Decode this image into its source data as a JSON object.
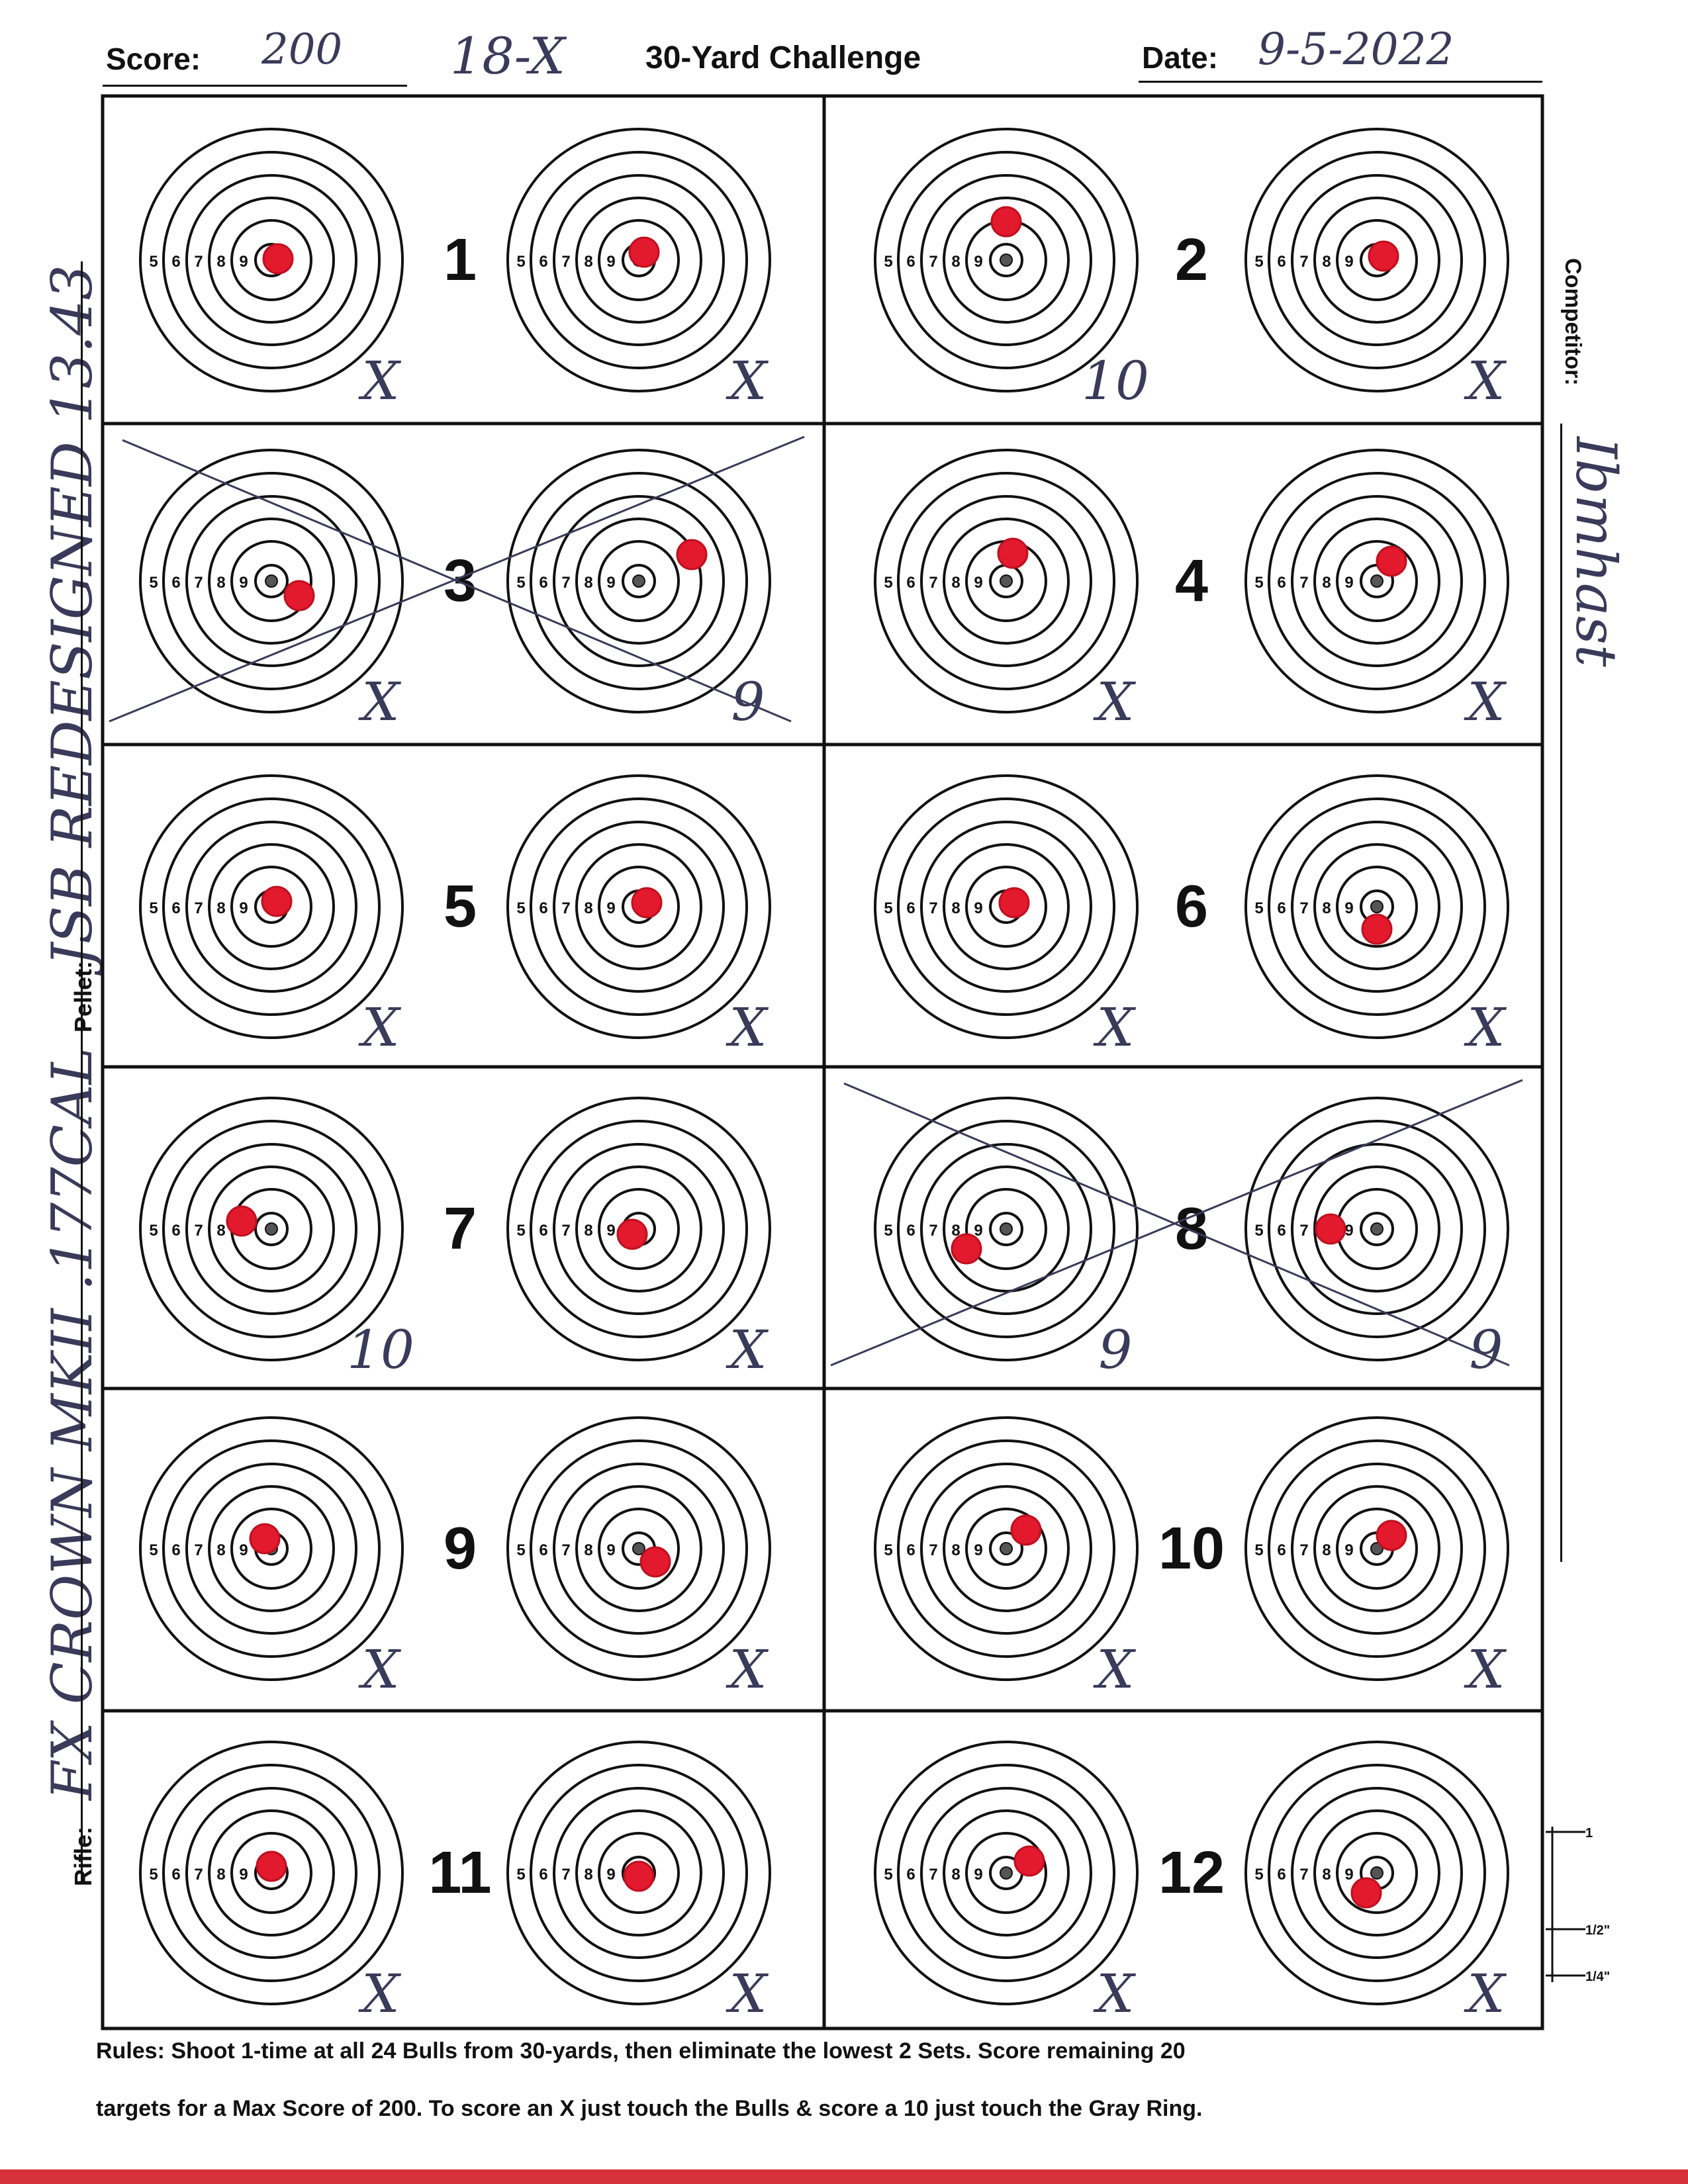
{
  "header": {
    "score_label": "Score:",
    "score_value": "200",
    "x_count": "18-X",
    "title": "30-Yard Challenge",
    "date_label": "Date:",
    "date_value": "9-5-2022"
  },
  "side_labels": {
    "rifle_label": "Rifle:",
    "rifle_value": "FX CROWN MKII .177CAL",
    "pellet_label": "Pellet:",
    "pellet_value": "JSB REDESIGNED 13.43",
    "competitor_label": "Competitor:",
    "competitor_value": "Ibmhast"
  },
  "ring_numbers": [
    "5",
    "6",
    "7",
    "8",
    "9"
  ],
  "sets": [
    {
      "number": "1",
      "left_score": "X",
      "right_score": "X",
      "crossed": false
    },
    {
      "number": "2",
      "left_score": "10",
      "right_score": "X",
      "crossed": false
    },
    {
      "number": "3",
      "left_score": "X",
      "right_score": "9",
      "crossed": true
    },
    {
      "number": "4",
      "left_score": "X",
      "right_score": "X",
      "crossed": false
    },
    {
      "number": "5",
      "left_score": "X",
      "right_score": "X",
      "crossed": false
    },
    {
      "number": "6",
      "left_score": "X",
      "right_score": "X",
      "crossed": false
    },
    {
      "number": "7",
      "left_score": "10",
      "right_score": "X",
      "crossed": false
    },
    {
      "number": "8",
      "left_score": "9",
      "right_score": "9",
      "crossed": true
    },
    {
      "number": "9",
      "left_score": "X",
      "right_score": "X",
      "crossed": false
    },
    {
      "number": "10",
      "left_score": "X",
      "right_score": "X",
      "crossed": false
    },
    {
      "number": "11",
      "left_score": "X",
      "right_score": "X",
      "crossed": false
    },
    {
      "number": "12",
      "left_score": "X",
      "right_score": "X",
      "crossed": false
    }
  ],
  "scale_marks": [
    "1",
    "1/2\"",
    "1/4\""
  ],
  "rules": {
    "line1": "Rules: Shoot 1-time at all 24 Bulls from 30-yards, then eliminate the lowest 2 Sets. Score remaining 20",
    "line2": "targets for a Max Score of 200. To score an X just touch the Bulls & score a 10 just touch the Gray Ring."
  },
  "colors": {
    "ink": "#111111",
    "pen": "#3a3a5a",
    "hole_red": "#e3192e",
    "gray_ring": "#9a9a9a",
    "bottom_bar": "#d6303a"
  }
}
